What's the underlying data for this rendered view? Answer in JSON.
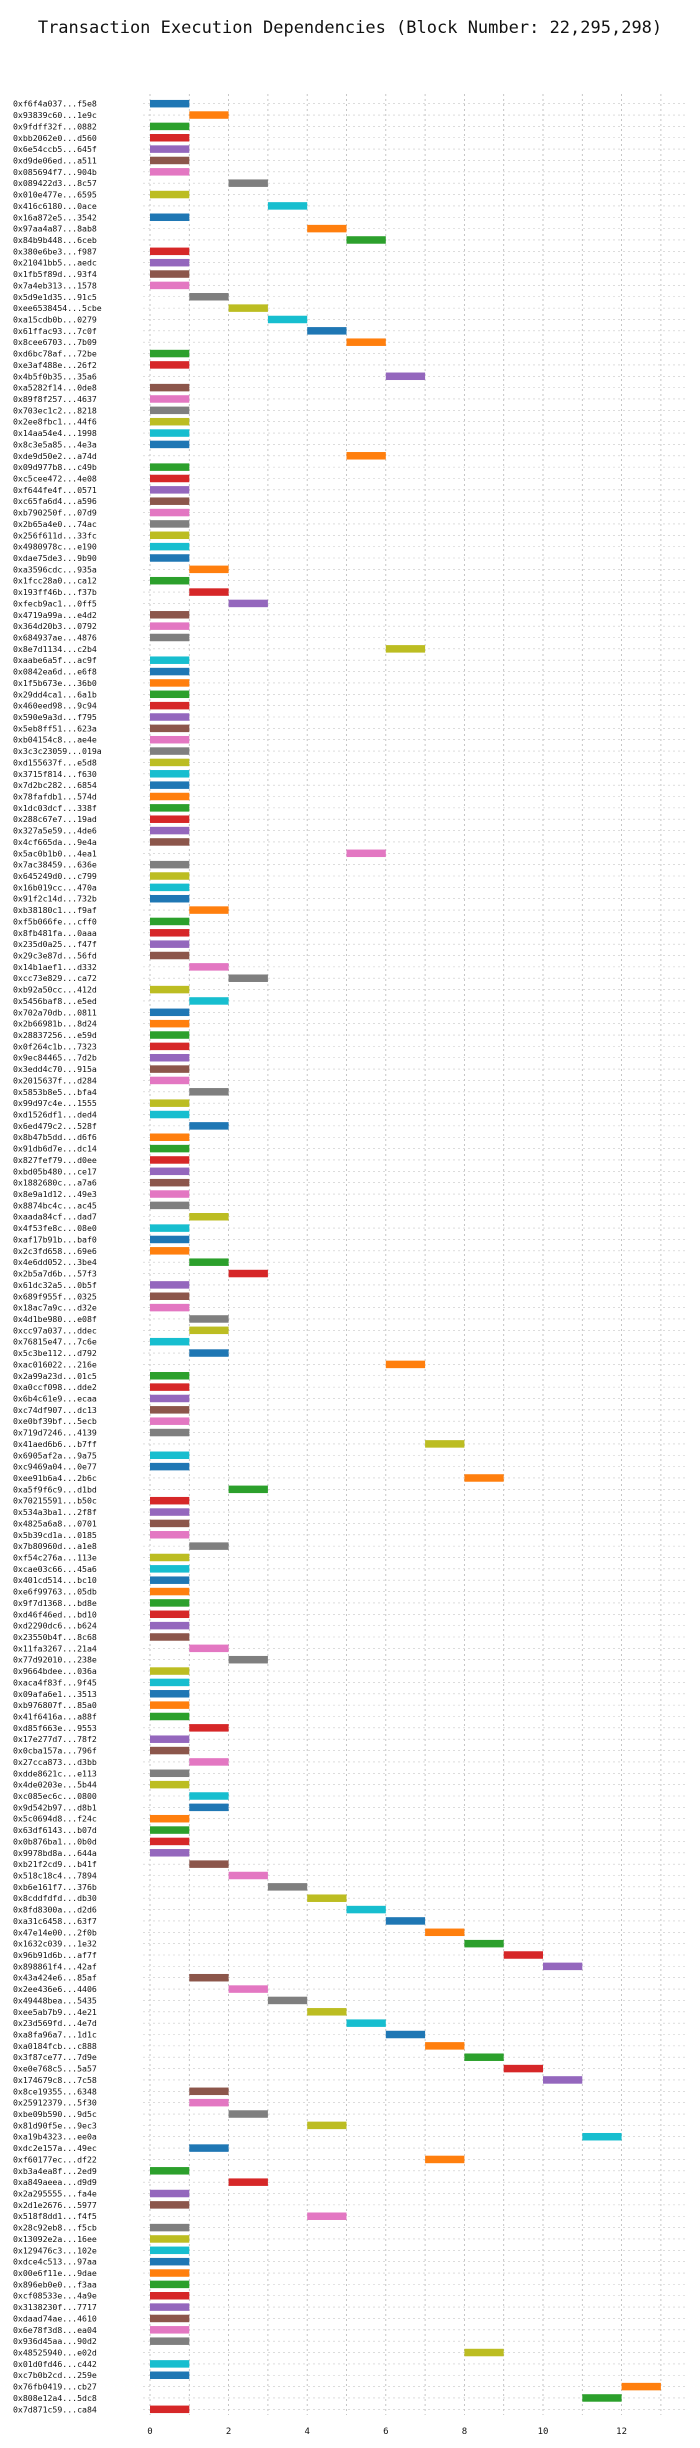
{
  "chart_data": {
    "type": "bar",
    "orientation": "horizontal-timeline",
    "title": "Transaction Execution Dependencies (Block Number: 22,295,298)",
    "xlabel": "",
    "ylabel": "",
    "xlim": [
      0,
      14
    ],
    "x_ticks": [
      0,
      2,
      4,
      6,
      8,
      10,
      12
    ],
    "grid": true,
    "palette": [
      "#1f77b4",
      "#ff7f0e",
      "#2ca02c",
      "#d62728",
      "#9467bd",
      "#8c564b",
      "#e377c2",
      "#7f7f7f",
      "#bcbd22",
      "#17becf"
    ],
    "transactions": [
      {
        "label": "0xf6f4a037...f5e8",
        "start": 0,
        "end": 1
      },
      {
        "label": "0x93839c60...1e9c",
        "start": 1,
        "end": 2
      },
      {
        "label": "0x9fdff32f...0882",
        "start": 0,
        "end": 1
      },
      {
        "label": "0xbb2062e0...d560",
        "start": 0,
        "end": 1
      },
      {
        "label": "0x6e54ccb5...645f",
        "start": 0,
        "end": 1
      },
      {
        "label": "0xd9de06ed...a511",
        "start": 0,
        "end": 1
      },
      {
        "label": "0x085694f7...904b",
        "start": 0,
        "end": 1
      },
      {
        "label": "0x089422d3...8c57",
        "start": 2,
        "end": 3
      },
      {
        "label": "0x010e477e...6595",
        "start": 0,
        "end": 1
      },
      {
        "label": "0x416c6180...0ace",
        "start": 3,
        "end": 4
      },
      {
        "label": "0x16a872e5...3542",
        "start": 0,
        "end": 1
      },
      {
        "label": "0x97aa4a87...8ab8",
        "start": 4,
        "end": 5
      },
      {
        "label": "0x84b9b448...6ceb",
        "start": 5,
        "end": 6
      },
      {
        "label": "0x380e6be3...f987",
        "start": 0,
        "end": 1
      },
      {
        "label": "0x21041bb5...aedc",
        "start": 0,
        "end": 1
      },
      {
        "label": "0x1fb5f89d...93f4",
        "start": 0,
        "end": 1
      },
      {
        "label": "0x7a4eb313...1578",
        "start": 0,
        "end": 1
      },
      {
        "label": "0x5d9e1d35...91c5",
        "start": 1,
        "end": 2
      },
      {
        "label": "0xee6538454...5cbe",
        "start": 2,
        "end": 3
      },
      {
        "label": "0xa15cdb0b...0279",
        "start": 3,
        "end": 4
      },
      {
        "label": "0x61ffac93...7c0f",
        "start": 4,
        "end": 5
      },
      {
        "label": "0x8cee6703...7b09",
        "start": 5,
        "end": 6
      },
      {
        "label": "0xd6bc78af...72be",
        "start": 0,
        "end": 1
      },
      {
        "label": "0xe3af488e...26f2",
        "start": 0,
        "end": 1
      },
      {
        "label": "0x4b5f0b35...35a6",
        "start": 6,
        "end": 7
      },
      {
        "label": "0xa5282f14...0de8",
        "start": 0,
        "end": 1
      },
      {
        "label": "0x89f8f257...4637",
        "start": 0,
        "end": 1
      },
      {
        "label": "0x703ec1c2...8218",
        "start": 0,
        "end": 1
      },
      {
        "label": "0x2ee8fbc1...44f6",
        "start": 0,
        "end": 1
      },
      {
        "label": "0x14aa54e4...1998",
        "start": 0,
        "end": 1
      },
      {
        "label": "0x8c3e5a85...4e3a",
        "start": 0,
        "end": 1
      },
      {
        "label": "0xde9d50e2...a74d",
        "start": 5,
        "end": 6
      },
      {
        "label": "0x09d977b8...c49b",
        "start": 0,
        "end": 1
      },
      {
        "label": "0xc5cee472...4e08",
        "start": 0,
        "end": 1
      },
      {
        "label": "0xf644fe4f...0571",
        "start": 0,
        "end": 1
      },
      {
        "label": "0xc65fa6d4...a596",
        "start": 0,
        "end": 1
      },
      {
        "label": "0xb790250f...07d9",
        "start": 0,
        "end": 1
      },
      {
        "label": "0x2b65a4e0...74ac",
        "start": 0,
        "end": 1
      },
      {
        "label": "0x256f611d...33fc",
        "start": 0,
        "end": 1
      },
      {
        "label": "0x4980978c...e190",
        "start": 0,
        "end": 1
      },
      {
        "label": "0xdae75de3...9b90",
        "start": 0,
        "end": 1
      },
      {
        "label": "0xa3596cdc...935a",
        "start": 1,
        "end": 2
      },
      {
        "label": "0x1fcc28a0...ca12",
        "start": 0,
        "end": 1
      },
      {
        "label": "0x193ff46b...f37b",
        "start": 1,
        "end": 2
      },
      {
        "label": "0xfecb9ac1...0ff5",
        "start": 2,
        "end": 3
      },
      {
        "label": "0x4719a99a...e4d2",
        "start": 0,
        "end": 1
      },
      {
        "label": "0x364d20b3...0792",
        "start": 0,
        "end": 1
      },
      {
        "label": "0x684937ae...4876",
        "start": 0,
        "end": 1
      },
      {
        "label": "0x8e7d1134...c2b4",
        "start": 6,
        "end": 7
      },
      {
        "label": "0xaabe6a5f...ac9f",
        "start": 0,
        "end": 1
      },
      {
        "label": "0x0842ea6d...e6f8",
        "start": 0,
        "end": 1
      },
      {
        "label": "0x1f5b673e...36b0",
        "start": 0,
        "end": 1
      },
      {
        "label": "0x29dd4ca1...6a1b",
        "start": 0,
        "end": 1
      },
      {
        "label": "0x460eed98...9c94",
        "start": 0,
        "end": 1
      },
      {
        "label": "0x590e9a3d...f795",
        "start": 0,
        "end": 1
      },
      {
        "label": "0x5eb8ff51...623a",
        "start": 0,
        "end": 1
      },
      {
        "label": "0xb04154c8...ae4e",
        "start": 0,
        "end": 1
      },
      {
        "label": "0x3c3c23059...019a",
        "start": 0,
        "end": 1
      },
      {
        "label": "0xd155637f...e5d8",
        "start": 0,
        "end": 1
      },
      {
        "label": "0x3715f814...f630",
        "start": 0,
        "end": 1
      },
      {
        "label": "0x7d2bc282...6854",
        "start": 0,
        "end": 1
      },
      {
        "label": "0x78fafdb1...574d",
        "start": 0,
        "end": 1
      },
      {
        "label": "0x1dc03dcf...338f",
        "start": 0,
        "end": 1
      },
      {
        "label": "0x288c67e7...19ad",
        "start": 0,
        "end": 1
      },
      {
        "label": "0x327a5e59...4de6",
        "start": 0,
        "end": 1
      },
      {
        "label": "0x4cf665da...9e4a",
        "start": 0,
        "end": 1
      },
      {
        "label": "0x5ac0b1b0...4ea1",
        "start": 5,
        "end": 6
      },
      {
        "label": "0x7ac38459...636e",
        "start": 0,
        "end": 1
      },
      {
        "label": "0x645249d0...c799",
        "start": 0,
        "end": 1
      },
      {
        "label": "0x16b019cc...470a",
        "start": 0,
        "end": 1
      },
      {
        "label": "0x91f2c14d...732b",
        "start": 0,
        "end": 1
      },
      {
        "label": "0xb38180c1...f9af",
        "start": 1,
        "end": 2
      },
      {
        "label": "0xf5b066fe...cff0",
        "start": 0,
        "end": 1
      },
      {
        "label": "0x8fb481fa...0aaa",
        "start": 0,
        "end": 1
      },
      {
        "label": "0x235d0a25...f47f",
        "start": 0,
        "end": 1
      },
      {
        "label": "0x29c3e87d...56fd",
        "start": 0,
        "end": 1
      },
      {
        "label": "0x14b1aef1...d332",
        "start": 1,
        "end": 2
      },
      {
        "label": "0xcc73e829...ca72",
        "start": 2,
        "end": 3
      },
      {
        "label": "0xb92a50cc...412d",
        "start": 0,
        "end": 1
      },
      {
        "label": "0x5456baf8...e5ed",
        "start": 1,
        "end": 2
      },
      {
        "label": "0x702a70db...0811",
        "start": 0,
        "end": 1
      },
      {
        "label": "0x2b66981b...8d24",
        "start": 0,
        "end": 1
      },
      {
        "label": "0x28837256...e59d",
        "start": 0,
        "end": 1
      },
      {
        "label": "0x0f264c1b...7323",
        "start": 0,
        "end": 1
      },
      {
        "label": "0x9ec84465...7d2b",
        "start": 0,
        "end": 1
      },
      {
        "label": "0x3edd4c70...915a",
        "start": 0,
        "end": 1
      },
      {
        "label": "0x2015637f...d284",
        "start": 0,
        "end": 1
      },
      {
        "label": "0x5853b8e5...bfa4",
        "start": 1,
        "end": 2
      },
      {
        "label": "0x99d97c4e...1555",
        "start": 0,
        "end": 1
      },
      {
        "label": "0xd1526df1...ded4",
        "start": 0,
        "end": 1
      },
      {
        "label": "0x6ed479c2...528f",
        "start": 1,
        "end": 2
      },
      {
        "label": "0x8b47b5dd...d6f6",
        "start": 0,
        "end": 1
      },
      {
        "label": "0x91db6d7e...dc14",
        "start": 0,
        "end": 1
      },
      {
        "label": "0x827fef79...d0ee",
        "start": 0,
        "end": 1
      },
      {
        "label": "0xbd05b480...ce17",
        "start": 0,
        "end": 1
      },
      {
        "label": "0x1882680c...a7a6",
        "start": 0,
        "end": 1
      },
      {
        "label": "0x8e9a1d12...49e3",
        "start": 0,
        "end": 1
      },
      {
        "label": "0x8874bc4c...ac45",
        "start": 0,
        "end": 1
      },
      {
        "label": "0xaada84cf...dad7",
        "start": 1,
        "end": 2
      },
      {
        "label": "0x4f53fe8c...08e0",
        "start": 0,
        "end": 1
      },
      {
        "label": "0xaf17b91b...baf0",
        "start": 0,
        "end": 1
      },
      {
        "label": "0x2c3fd658...69e6",
        "start": 0,
        "end": 1
      },
      {
        "label": "0x4e6dd052...3be4",
        "start": 1,
        "end": 2
      },
      {
        "label": "0x2b5a7d6b...57f3",
        "start": 2,
        "end": 3
      },
      {
        "label": "0x61dc32a5...0b5f",
        "start": 0,
        "end": 1
      },
      {
        "label": "0x689f955f...0325",
        "start": 0,
        "end": 1
      },
      {
        "label": "0x18ac7a9c...d32e",
        "start": 0,
        "end": 1
      },
      {
        "label": "0x4d1be980...e08f",
        "start": 1,
        "end": 2
      },
      {
        "label": "0xcc97a037...ddec",
        "start": 1,
        "end": 2
      },
      {
        "label": "0x76815e47...7c6e",
        "start": 0,
        "end": 1
      },
      {
        "label": "0x5c3be112...d792",
        "start": 1,
        "end": 2
      },
      {
        "label": "0xac016022...216e",
        "start": 6,
        "end": 7
      },
      {
        "label": "0x2a99a23d...01c5",
        "start": 0,
        "end": 1
      },
      {
        "label": "0xa0ccf098...dde2",
        "start": 0,
        "end": 1
      },
      {
        "label": "0x6b4c61e9...ecaa",
        "start": 0,
        "end": 1
      },
      {
        "label": "0xc74df907...dc13",
        "start": 0,
        "end": 1
      },
      {
        "label": "0xe0bf39bf...5ecb",
        "start": 0,
        "end": 1
      },
      {
        "label": "0x719d7246...4139",
        "start": 0,
        "end": 1
      },
      {
        "label": "0x41aed6b6...b7ff",
        "start": 7,
        "end": 8
      },
      {
        "label": "0x6905af2a...9a75",
        "start": 0,
        "end": 1
      },
      {
        "label": "0xc9469a04...0e77",
        "start": 0,
        "end": 1
      },
      {
        "label": "0xee91b6a4...2b6c",
        "start": 8,
        "end": 9
      },
      {
        "label": "0xa5f9f6c9...d1bd",
        "start": 2,
        "end": 3
      },
      {
        "label": "0x70215591...b50c",
        "start": 0,
        "end": 1
      },
      {
        "label": "0x534a3ba1...2f8f",
        "start": 0,
        "end": 1
      },
      {
        "label": "0x4825a6a8...0701",
        "start": 0,
        "end": 1
      },
      {
        "label": "0x5b39cd1a...0185",
        "start": 0,
        "end": 1
      },
      {
        "label": "0x7b80960d...a1e8",
        "start": 1,
        "end": 2
      },
      {
        "label": "0xf54c276a...113e",
        "start": 0,
        "end": 1
      },
      {
        "label": "0xcae03c66...45a6",
        "start": 0,
        "end": 1
      },
      {
        "label": "0x401cd514...bc10",
        "start": 0,
        "end": 1
      },
      {
        "label": "0xe6f99763...05db",
        "start": 0,
        "end": 1
      },
      {
        "label": "0x9f7d1368...bd8e",
        "start": 0,
        "end": 1
      },
      {
        "label": "0xd46f46ed...bd10",
        "start": 0,
        "end": 1
      },
      {
        "label": "0xd2290dc6...b624",
        "start": 0,
        "end": 1
      },
      {
        "label": "0x23550b4f...8c68",
        "start": 0,
        "end": 1
      },
      {
        "label": "0x11fa3267...21a4",
        "start": 1,
        "end": 2
      },
      {
        "label": "0x77d92010...238e",
        "start": 2,
        "end": 3
      },
      {
        "label": "0x9664bdee...036a",
        "start": 0,
        "end": 1
      },
      {
        "label": "0xaca4f83f...9f45",
        "start": 0,
        "end": 1
      },
      {
        "label": "0x09afa6e1...3513",
        "start": 0,
        "end": 1
      },
      {
        "label": "0xb976807f...85a0",
        "start": 0,
        "end": 1
      },
      {
        "label": "0x41f6416a...a88f",
        "start": 0,
        "end": 1
      },
      {
        "label": "0xd85f663e...9553",
        "start": 1,
        "end": 2
      },
      {
        "label": "0x17e277d7...78f2",
        "start": 0,
        "end": 1
      },
      {
        "label": "0x0cba157a...796f",
        "start": 0,
        "end": 1
      },
      {
        "label": "0x27cca873...d3bb",
        "start": 1,
        "end": 2
      },
      {
        "label": "0xdde8621c...e113",
        "start": 0,
        "end": 1
      },
      {
        "label": "0x4de0203e...5b44",
        "start": 0,
        "end": 1
      },
      {
        "label": "0xc085ec6c...0800",
        "start": 1,
        "end": 2
      },
      {
        "label": "0x9d542b97...d8b1",
        "start": 1,
        "end": 2
      },
      {
        "label": "0x5c0694d8...f24c",
        "start": 0,
        "end": 1
      },
      {
        "label": "0x63df6143...b07d",
        "start": 0,
        "end": 1
      },
      {
        "label": "0x0b876ba1...0b0d",
        "start": 0,
        "end": 1
      },
      {
        "label": "0x9978bd8a...644a",
        "start": 0,
        "end": 1
      },
      {
        "label": "0xb21f2cd9...b41f",
        "start": 1,
        "end": 2
      },
      {
        "label": "0x518c18c4...7894",
        "start": 2,
        "end": 3
      },
      {
        "label": "0xb6e161f7...376b",
        "start": 3,
        "end": 4
      },
      {
        "label": "0x8cddfdfd...db30",
        "start": 4,
        "end": 5
      },
      {
        "label": "0x8fd8300a...d2d6",
        "start": 5,
        "end": 6
      },
      {
        "label": "0xa31c6458...63f7",
        "start": 6,
        "end": 7
      },
      {
        "label": "0x47e14e00...2f0b",
        "start": 7,
        "end": 8
      },
      {
        "label": "0x1632c039...1e32",
        "start": 8,
        "end": 9
      },
      {
        "label": "0x96b91d6b...af7f",
        "start": 9,
        "end": 10
      },
      {
        "label": "0x898861f4...42af",
        "start": 10,
        "end": 11
      },
      {
        "label": "0x43a424e6...85af",
        "start": 1,
        "end": 2
      },
      {
        "label": "0x2ee436e6...4406",
        "start": 2,
        "end": 3
      },
      {
        "label": "0x49448bea...5435",
        "start": 3,
        "end": 4
      },
      {
        "label": "0xee5ab7b9...4e21",
        "start": 4,
        "end": 5
      },
      {
        "label": "0x23d569fd...4e7d",
        "start": 5,
        "end": 6
      },
      {
        "label": "0xa8fa96a7...1d1c",
        "start": 6,
        "end": 7
      },
      {
        "label": "0xa0184fcb...c888",
        "start": 7,
        "end": 8
      },
      {
        "label": "0x3f87ce77...7d9e",
        "start": 8,
        "end": 9
      },
      {
        "label": "0xe0e768c5...5a57",
        "start": 9,
        "end": 10
      },
      {
        "label": "0x174679c8...7c58",
        "start": 10,
        "end": 11
      },
      {
        "label": "0x8ce19355...6348",
        "start": 1,
        "end": 2
      },
      {
        "label": "0x25912379...5f30",
        "start": 1,
        "end": 2
      },
      {
        "label": "0xbe09b590...9d5c",
        "start": 2,
        "end": 3
      },
      {
        "label": "0x81d90f5e...9ec3",
        "start": 4,
        "end": 5
      },
      {
        "label": "0xa19b4323...ee0a",
        "start": 11,
        "end": 12
      },
      {
        "label": "0xdc2e157a...49ec",
        "start": 1,
        "end": 2
      },
      {
        "label": "0xf60177ec...df22",
        "start": 7,
        "end": 8
      },
      {
        "label": "0xb3a4ea8f...2ed9",
        "start": 0,
        "end": 1
      },
      {
        "label": "0xa849aeea...d9d9",
        "start": 2,
        "end": 3
      },
      {
        "label": "0x2a295555...fa4e",
        "start": 0,
        "end": 1
      },
      {
        "label": "0x2d1e2676...5977",
        "start": 0,
        "end": 1
      },
      {
        "label": "0x518f8dd1...f4f5",
        "start": 4,
        "end": 5
      },
      {
        "label": "0x28c92eb8...f5cb",
        "start": 0,
        "end": 1
      },
      {
        "label": "0x13092e2a...16ee",
        "start": 0,
        "end": 1
      },
      {
        "label": "0x129476c3...102e",
        "start": 0,
        "end": 1
      },
      {
        "label": "0xdce4c513...97aa",
        "start": 0,
        "end": 1
      },
      {
        "label": "0x00e6f11e...9dae",
        "start": 0,
        "end": 1
      },
      {
        "label": "0x896eb0e0...f3aa",
        "start": 0,
        "end": 1
      },
      {
        "label": "0xcf08533e...4a9e",
        "start": 0,
        "end": 1
      },
      {
        "label": "0x3138230f...7717",
        "start": 0,
        "end": 1
      },
      {
        "label": "0xdaad74ae...4610",
        "start": 0,
        "end": 1
      },
      {
        "label": "0x6e78f3d8...ea04",
        "start": 0,
        "end": 1
      },
      {
        "label": "0x936d45aa...90d2",
        "start": 0,
        "end": 1
      },
      {
        "label": "0x48525940...e02d",
        "start": 8,
        "end": 9
      },
      {
        "label": "0x01d0fd46...c442",
        "start": 0,
        "end": 1
      },
      {
        "label": "0xc7b0b2cd...259e",
        "start": 0,
        "end": 1
      },
      {
        "label": "0x76fb0419...cb27",
        "start": 12,
        "end": 13
      },
      {
        "label": "0x808e12a4...5dc8",
        "start": 11,
        "end": 12
      },
      {
        "label": "0x7d871c59...ca84",
        "start": 0,
        "end": 1
      }
    ]
  }
}
